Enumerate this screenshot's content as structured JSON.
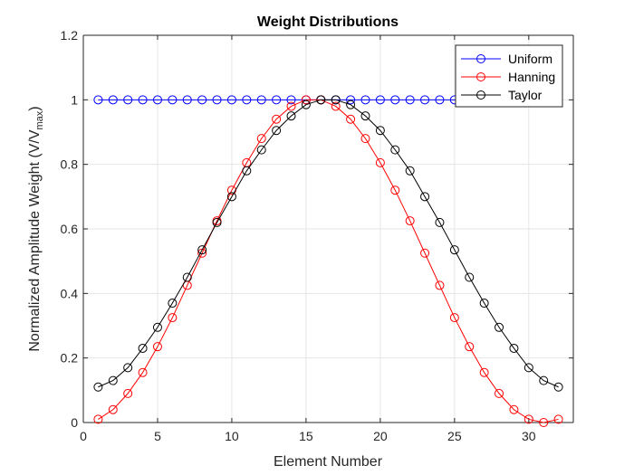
{
  "chart_data": {
    "type": "line",
    "title": "Weight Distributions",
    "xlabel": "Element Number",
    "ylabel_main": "Normalized Amplitude Weight (V/V",
    "ylabel_sub": "max",
    "ylabel_close": ")",
    "xlim": [
      0,
      33
    ],
    "ylim": [
      0,
      1.2
    ],
    "xticks": [
      0,
      5,
      10,
      15,
      20,
      25,
      30
    ],
    "yticks": [
      0,
      0.2,
      0.4,
      0.6,
      0.8,
      1,
      1.2
    ],
    "grid": true,
    "legend_position": "top-right",
    "marker": "circle",
    "x": [
      1,
      2,
      3,
      4,
      5,
      6,
      7,
      8,
      9,
      10,
      11,
      12,
      13,
      14,
      15,
      16,
      17,
      18,
      19,
      20,
      21,
      22,
      23,
      24,
      25,
      26,
      27,
      28,
      29,
      30,
      31,
      32
    ],
    "series": [
      {
        "name": "Uniform",
        "color": "#0000ff",
        "values": [
          1,
          1,
          1,
          1,
          1,
          1,
          1,
          1,
          1,
          1,
          1,
          1,
          1,
          1,
          1,
          1,
          1,
          1,
          1,
          1,
          1,
          1,
          1,
          1,
          1,
          1,
          1,
          1,
          1,
          1,
          1,
          1
        ]
      },
      {
        "name": "Hanning",
        "color": "#ff0000",
        "values": [
          0.01,
          0.04,
          0.09,
          0.155,
          0.235,
          0.325,
          0.425,
          0.525,
          0.625,
          0.72,
          0.805,
          0.88,
          0.94,
          0.98,
          1,
          1,
          0.98,
          0.94,
          0.88,
          0.805,
          0.72,
          0.625,
          0.525,
          0.425,
          0.325,
          0.235,
          0.155,
          0.09,
          0.04,
          0.01,
          0.0,
          0.01
        ]
      },
      {
        "name": "Taylor",
        "color": "#000000",
        "values": [
          0.11,
          0.13,
          0.17,
          0.23,
          0.295,
          0.37,
          0.45,
          0.535,
          0.62,
          0.7,
          0.78,
          0.845,
          0.905,
          0.95,
          0.985,
          1,
          1,
          0.985,
          0.95,
          0.905,
          0.845,
          0.78,
          0.7,
          0.62,
          0.535,
          0.45,
          0.37,
          0.295,
          0.23,
          0.17,
          0.13,
          0.11
        ]
      }
    ]
  }
}
